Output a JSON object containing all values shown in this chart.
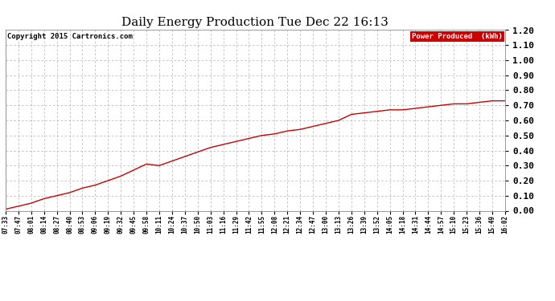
{
  "title": "Daily Energy Production Tue Dec 22 16:13",
  "copyright_text": "Copyright 2015 Cartronics.com",
  "legend_label": "Power Produced  (kWh)",
  "legend_bg": "#cc0000",
  "legend_fg": "#ffffff",
  "line_color": "#cc0000",
  "bg_color": "#ffffff",
  "plot_bg": "#ffffff",
  "grid_color": "#aaaaaa",
  "ylim": [
    0.0,
    1.2
  ],
  "yticks": [
    0.0,
    0.1,
    0.2,
    0.3,
    0.4,
    0.5,
    0.6,
    0.7,
    0.8,
    0.9,
    1.0,
    1.1,
    1.2
  ],
  "x_labels": [
    "07:33",
    "07:47",
    "08:01",
    "08:14",
    "08:27",
    "08:40",
    "08:53",
    "09:06",
    "09:19",
    "09:32",
    "09:45",
    "09:58",
    "10:11",
    "10:24",
    "10:37",
    "10:50",
    "11:03",
    "11:16",
    "11:29",
    "11:42",
    "11:55",
    "12:08",
    "12:21",
    "12:34",
    "12:47",
    "13:00",
    "13:13",
    "13:26",
    "13:39",
    "13:52",
    "14:05",
    "14:18",
    "14:31",
    "14:44",
    "14:57",
    "15:10",
    "15:23",
    "15:36",
    "15:49",
    "16:02"
  ],
  "y_values": [
    0.01,
    0.03,
    0.05,
    0.08,
    0.1,
    0.12,
    0.15,
    0.17,
    0.2,
    0.23,
    0.27,
    0.31,
    0.3,
    0.33,
    0.36,
    0.39,
    0.42,
    0.44,
    0.46,
    0.48,
    0.5,
    0.51,
    0.53,
    0.54,
    0.56,
    0.58,
    0.6,
    0.64,
    0.65,
    0.66,
    0.67,
    0.67,
    0.68,
    0.69,
    0.7,
    0.71,
    0.71,
    0.72,
    0.73,
    0.73
  ]
}
